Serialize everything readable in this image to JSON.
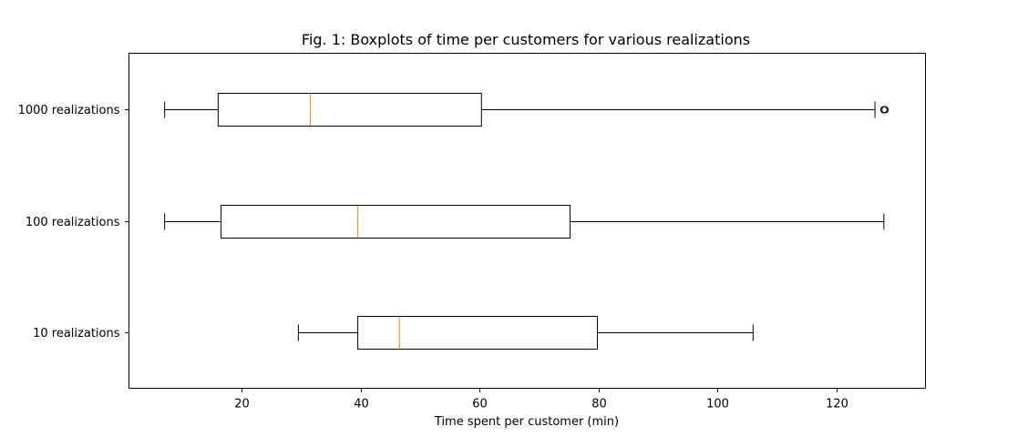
{
  "chart_data": {
    "type": "boxplot",
    "orientation": "horizontal",
    "title": "Fig. 1: Boxplots of time per customers for various realizations",
    "xlabel": "Time spent per customer (min)",
    "ylabel": "",
    "xlim": [
      1,
      135
    ],
    "xticks": [
      20,
      40,
      60,
      80,
      100,
      120
    ],
    "grid": false,
    "colors": {
      "box": "#000000",
      "median": "#ff7f0e",
      "outlier": "#000000"
    },
    "categories": [
      "10 realizations",
      "100 realizations",
      "1000 realizations"
    ],
    "boxes": [
      {
        "label": "10 realizations",
        "whisker_low": 29.5,
        "q1": 39.5,
        "median": 46.5,
        "q3": 79.8,
        "whisker_high": 106,
        "outliers": []
      },
      {
        "label": "100 realizations",
        "whisker_low": 7,
        "q1": 16.5,
        "median": 39.5,
        "q3": 75.2,
        "whisker_high": 128,
        "outliers": []
      },
      {
        "label": "1000 realizations",
        "whisker_low": 7,
        "q1": 16,
        "median": 31.5,
        "q3": 60.3,
        "whisker_high": 126.5,
        "outliers": [
          128,
          128.2
        ]
      }
    ]
  }
}
